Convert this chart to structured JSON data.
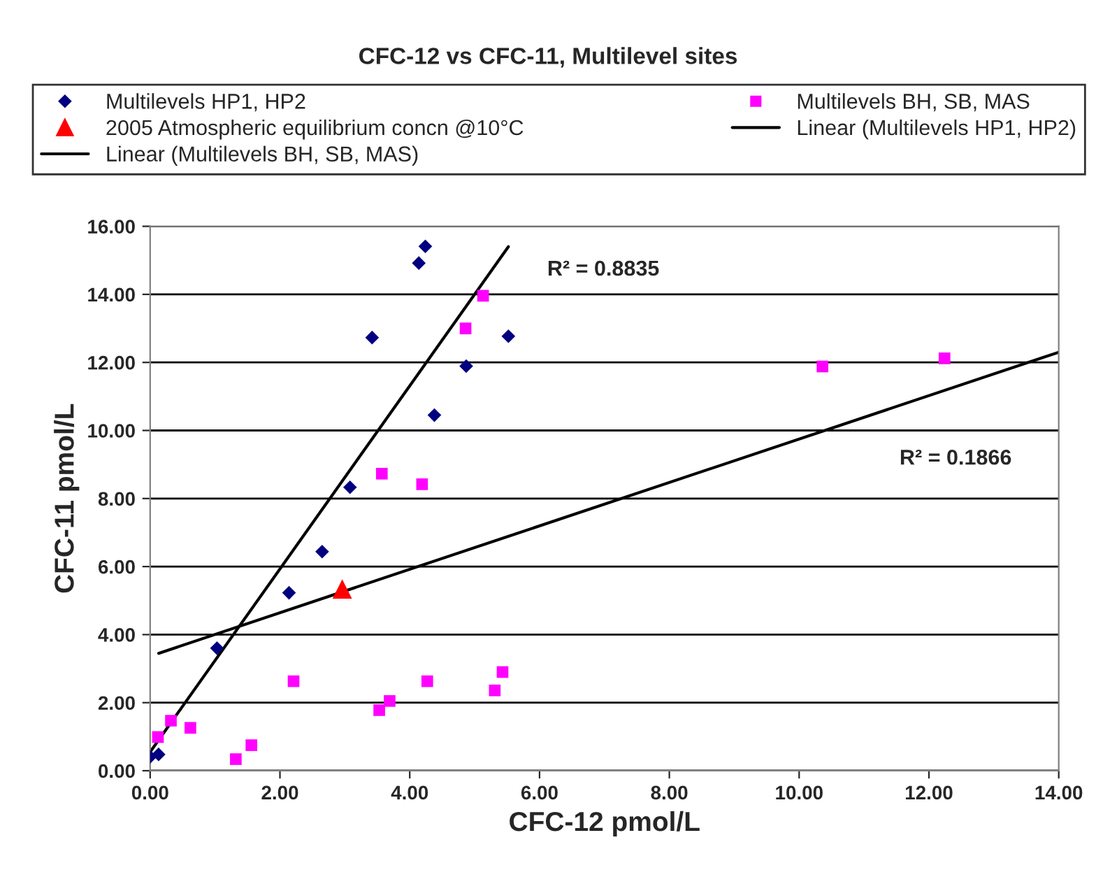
{
  "chart_data": {
    "type": "scatter",
    "title": "CFC-12 vs CFC-11, Multilevel sites",
    "xlabel": "CFC-12 pmol/L",
    "ylabel": "CFC-11 pmol/L",
    "series": [
      {
        "name": "Multilevels HP1, HP2",
        "color": "#000080",
        "marker": "diamond",
        "x": [
          0,
          0.13,
          null,
          1.03,
          2.14,
          2.65,
          3.08,
          3.42,
          4.14,
          4.24,
          4.38,
          4.87,
          5.52
        ],
        "values": [
          0.41,
          0.48,
          null,
          3.6,
          5.23,
          6.44,
          8.33,
          12.73,
          14.92,
          15.41,
          10.45,
          11.89,
          12.77
        ]
      },
      {
        "name": "Multilevels BH, SB, MAS",
        "color": "#ff00ff",
        "marker": "square",
        "x": [
          0.12,
          0.32,
          0.62,
          1.32,
          1.56,
          2.21,
          3.53,
          3.69,
          4.27,
          5.31,
          5.43,
          3.57,
          4.19,
          4.86,
          5.13,
          10.36,
          12.24
        ],
        "values": [
          0.99,
          1.47,
          1.26,
          0.34,
          0.75,
          2.63,
          1.78,
          2.05,
          2.63,
          2.36,
          2.9,
          8.73,
          8.42,
          13.0,
          13.96,
          11.88,
          12.12
        ]
      },
      {
        "name": "2005 Atmospheric equilibrium concn @10°C",
        "color": "#ff0000",
        "marker": "triangle",
        "x": [
          2.96
        ],
        "values": [
          5.34
        ]
      },
      {
        "name": "Linear (Multilevels HP1, HP2)",
        "type": "line",
        "color": "#000000",
        "marker": "none",
        "x": [
          0,
          5.52
        ],
        "values": [
          0.55,
          15.4
        ]
      },
      {
        "name": "Linear (Multilevels BH, SB, MAS)",
        "type": "line",
        "color": "#000000",
        "marker": "none",
        "x": [
          0.13,
          14
        ],
        "values": [
          3.45,
          12.3
        ]
      }
    ],
    "annotations": [
      "R² = 0.8835",
      "R² = 0.1866"
    ],
    "xlim": [
      0,
      14
    ],
    "ylim": [
      0,
      16
    ],
    "xticks": [
      {
        "value": 0,
        "label": "0.00"
      },
      {
        "value": 2,
        "label": "2.00"
      },
      {
        "value": 4,
        "label": "4.00"
      },
      {
        "value": 6,
        "label": "6.00"
      },
      {
        "value": 8,
        "label": "8.00"
      },
      {
        "value": 10,
        "label": "10.00"
      },
      {
        "value": 12,
        "label": "12.00"
      },
      {
        "value": 14,
        "label": "14.00"
      }
    ],
    "yticks": [
      {
        "value": 0,
        "label": "0.00"
      },
      {
        "value": 2,
        "label": "2.00"
      },
      {
        "value": 4,
        "label": "4.00"
      },
      {
        "value": 6,
        "label": "6.00"
      },
      {
        "value": 8,
        "label": "8.00"
      },
      {
        "value": 10,
        "label": "10.00"
      },
      {
        "value": 12,
        "label": "12.00"
      },
      {
        "value": 14,
        "label": "14.00"
      },
      {
        "value": 16,
        "label": "16.00"
      }
    ],
    "grid": "y",
    "legend": "top"
  }
}
